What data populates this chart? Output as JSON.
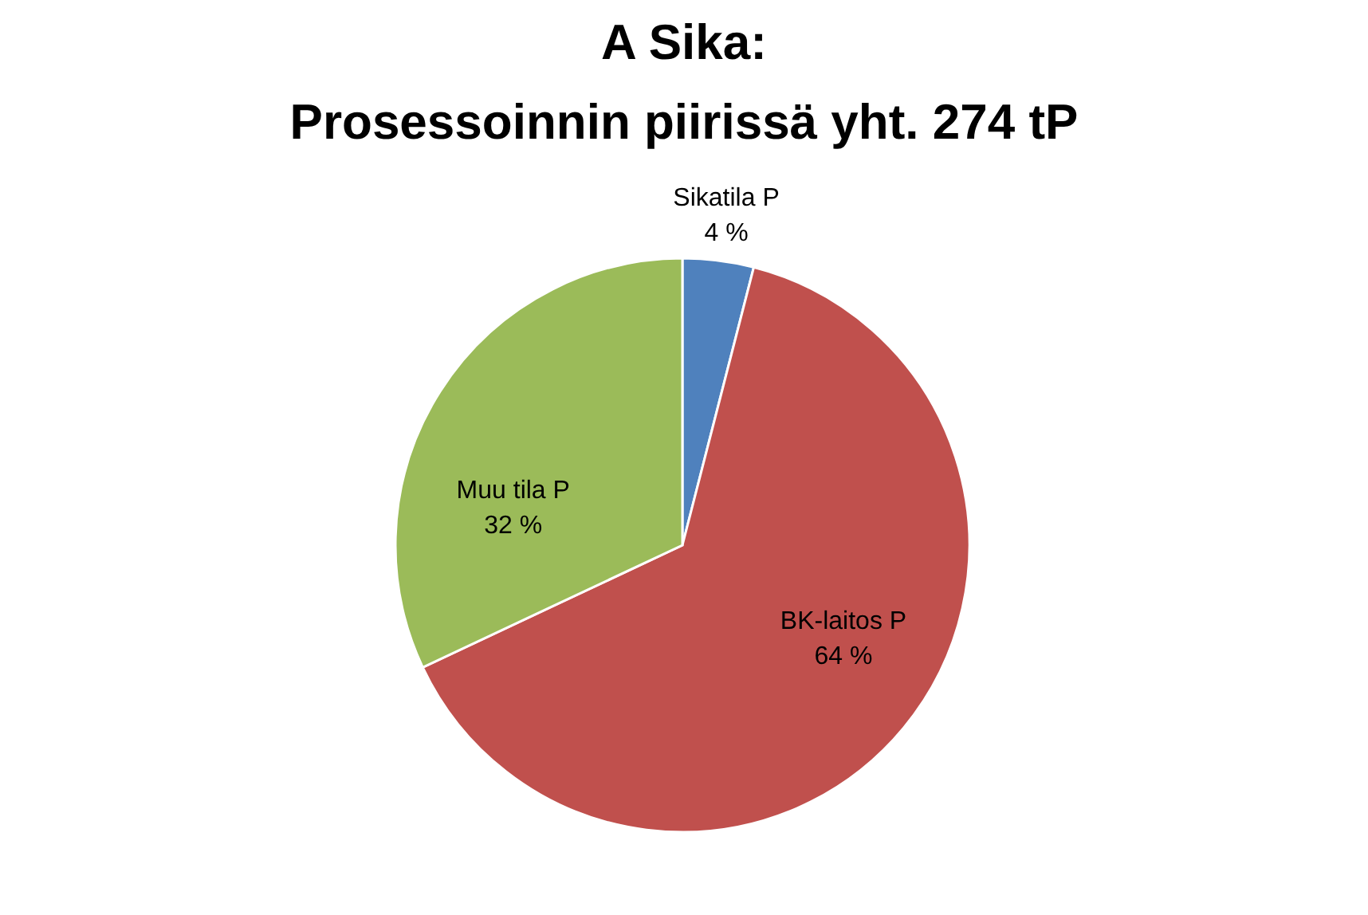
{
  "chart_data": {
    "type": "pie",
    "title": [
      "A Sika:",
      "Prosessoinnin piirissä yht. 274 tP"
    ],
    "categories": [
      "Sikatila P",
      "BK-laitos P",
      "Muu tila P"
    ],
    "values": [
      4,
      64,
      32
    ],
    "colors": [
      "#4f81bd",
      "#c0504d",
      "#9bbb59"
    ],
    "value_labels": [
      "4 %",
      "64 %",
      "32 %"
    ],
    "legend": false
  }
}
